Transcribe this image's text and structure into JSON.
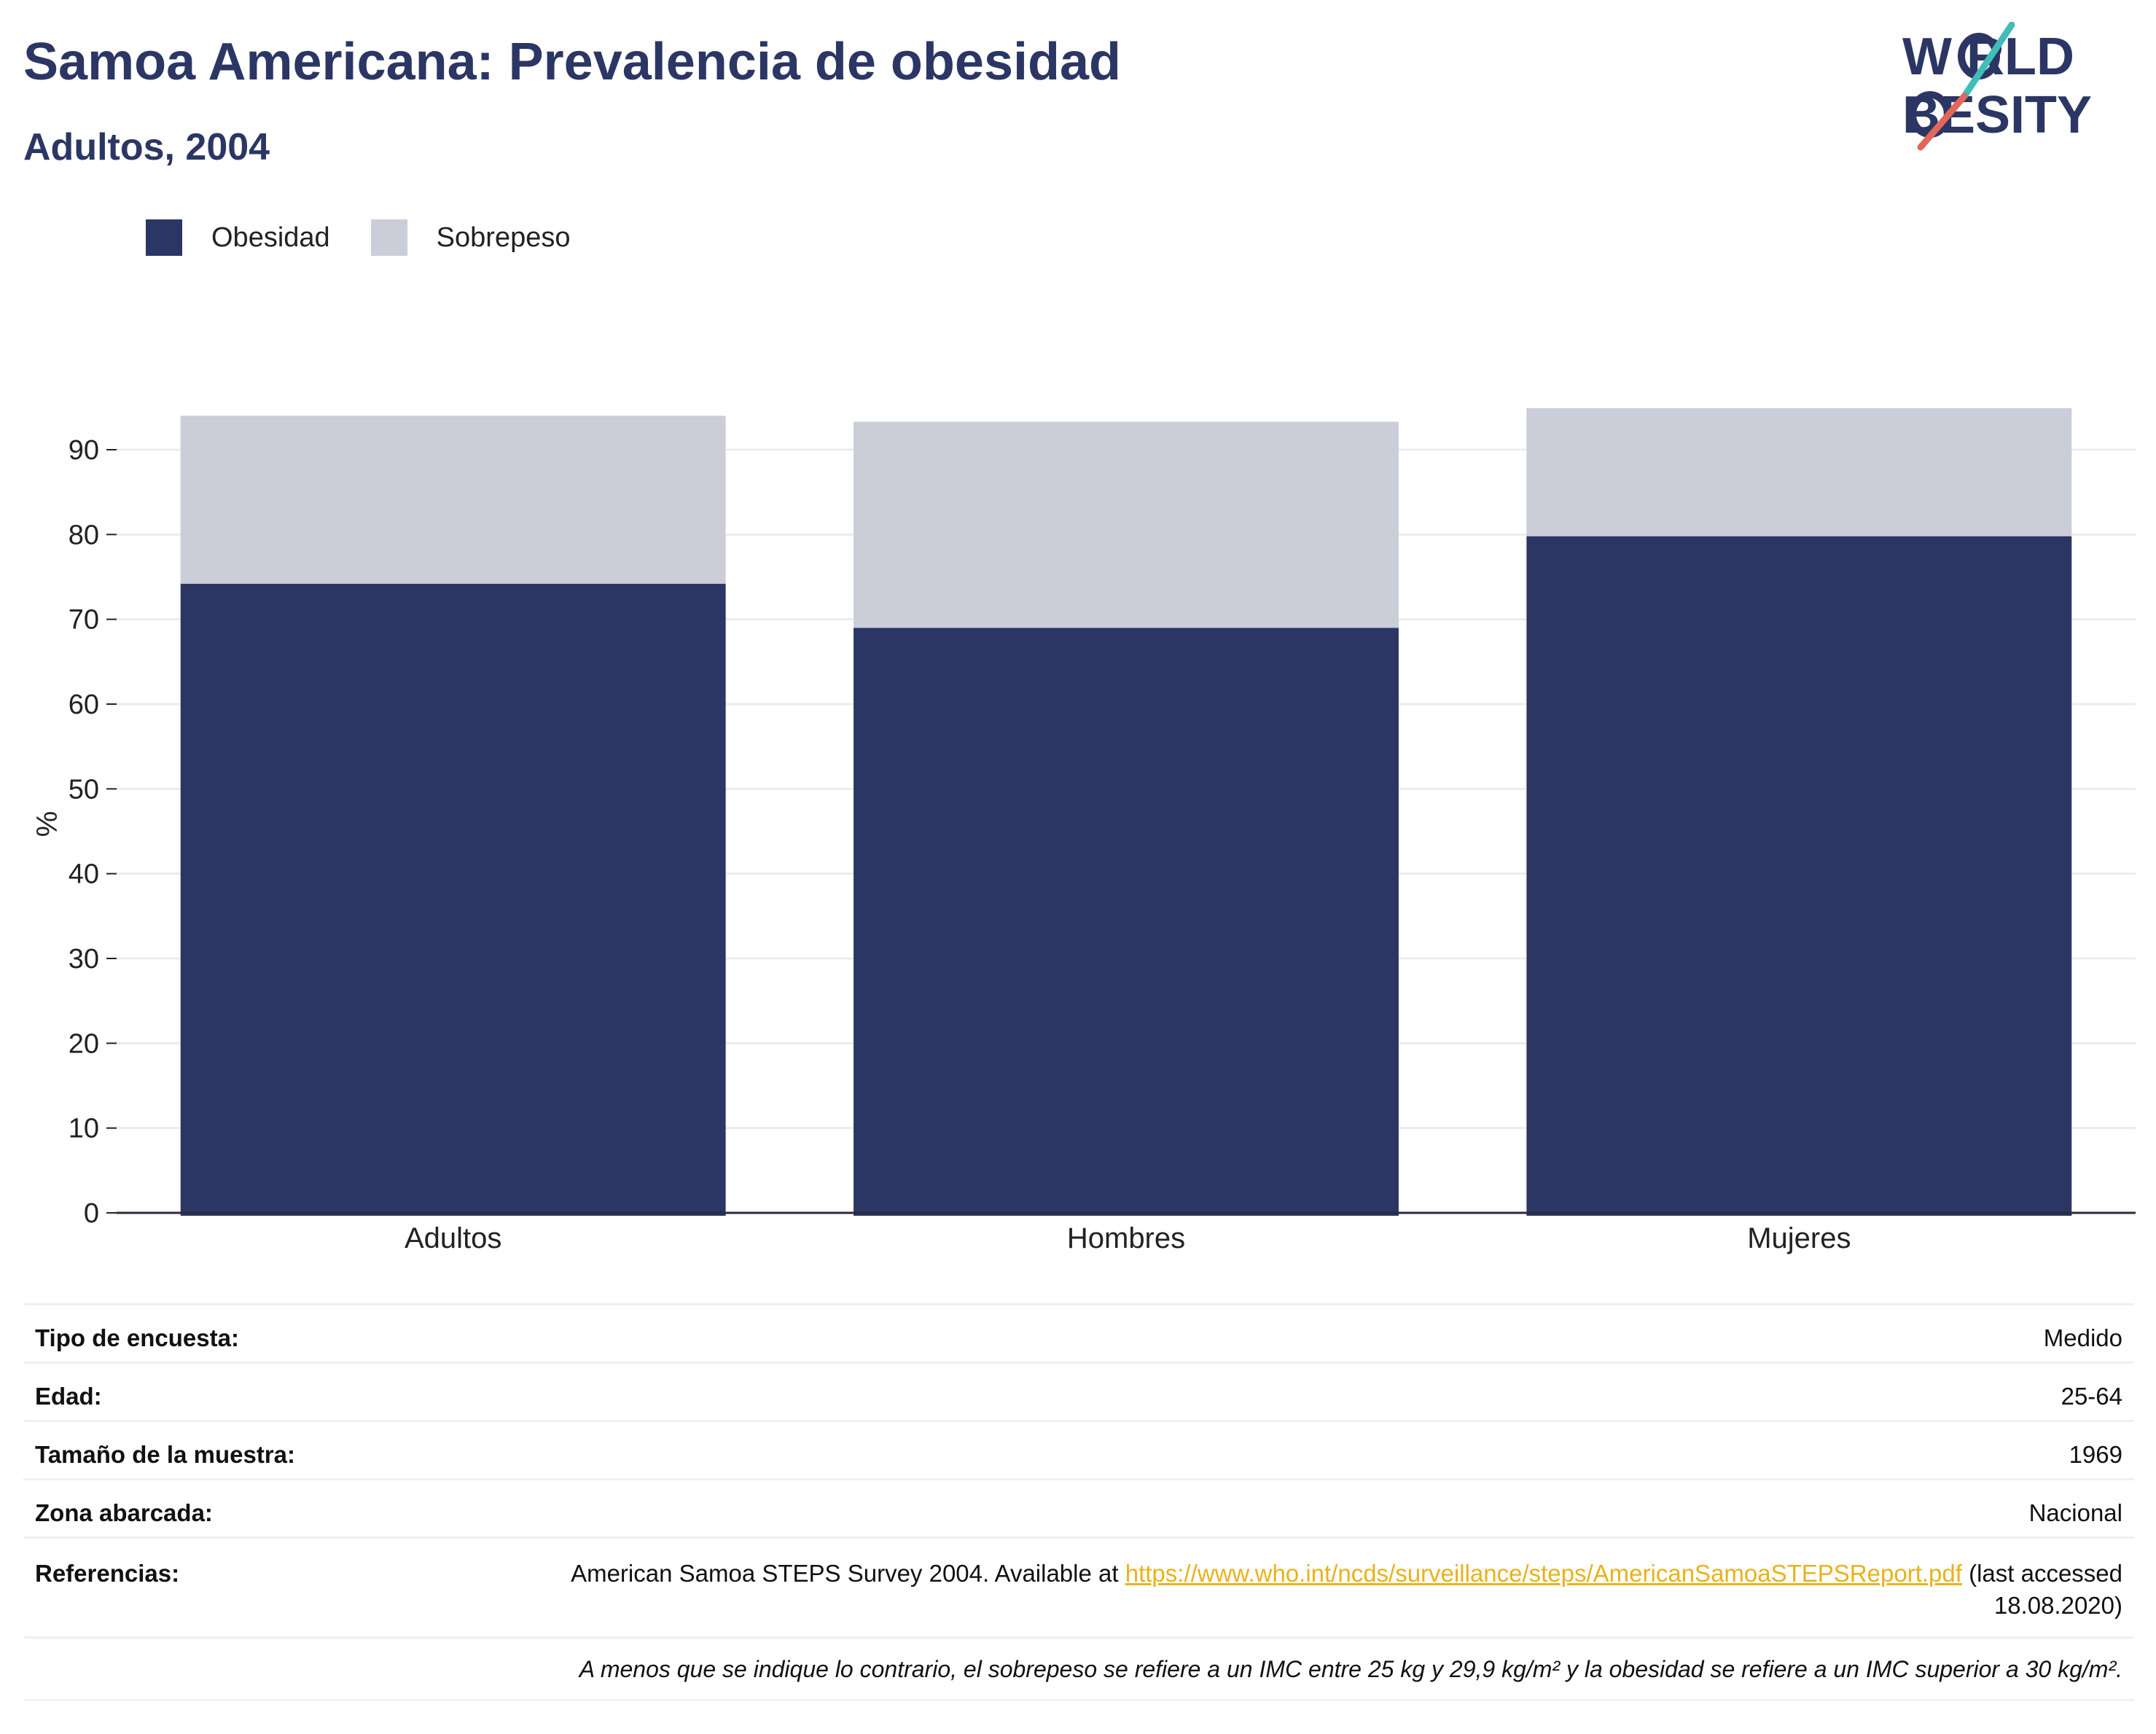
{
  "header": {
    "title": "Samoa Americana: Prevalencia de obesidad",
    "subtitle": "Adultos, 2004"
  },
  "logo": {
    "line1": "W  RLD",
    "line2": "  BESITY",
    "text": "WORLD OBESITY"
  },
  "legend": [
    {
      "label": "Obesidad",
      "color": "#2b3664"
    },
    {
      "label": "Sobrepeso",
      "color": "#cbcdd8"
    }
  ],
  "chart_data": {
    "type": "bar",
    "stacked": true,
    "categories": [
      "Adultos",
      "Hombres",
      "Mujeres"
    ],
    "series": [
      {
        "name": "Obesidad",
        "values": [
          74.2,
          69.0,
          79.8
        ],
        "color": "#2b3664"
      },
      {
        "name": "Sobrepeso",
        "values": [
          19.8,
          24.3,
          15.1
        ],
        "color": "#cbcdd8"
      }
    ],
    "ylabel": "%",
    "xlabel": "",
    "ylim": [
      0,
      95
    ],
    "yticks": [
      0,
      10,
      20,
      30,
      40,
      50,
      60,
      70,
      80,
      90
    ],
    "grid": true,
    "legend_position": "top-left"
  },
  "info": {
    "rows": [
      {
        "key": "Tipo de encuesta:",
        "value": "Medido"
      },
      {
        "key": "Edad:",
        "value": "25-64"
      },
      {
        "key": "Tamaño de la muestra:",
        "value": "1969"
      },
      {
        "key": "Zona abarcada:",
        "value": "Nacional"
      }
    ],
    "references": {
      "key": "Referencias:",
      "text_before": "American Samoa STEPS Survey 2004. Available at ",
      "link": "https://www.who.int/ncds/surveillance/steps/AmericanSamoaSTEPSReport.pdf",
      "text_after": " (last accessed 18.08.2020)"
    },
    "note": "A menos que se indique lo contrario, el sobrepeso se refiere a un IMC entre 25 kg y 29,9 kg/m² y la obesidad se refiere a un IMC superior a 30 kg/m²."
  }
}
